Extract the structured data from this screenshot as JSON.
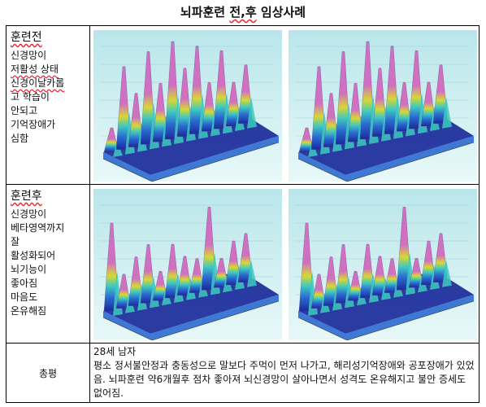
{
  "title": {
    "before": "뇌파훈련",
    "underlined": "전,후",
    "after": "임상사례"
  },
  "rows": [
    {
      "heading": "훈련전",
      "lines": [
        "신경망이",
        "저활성 상태",
        "신경이날카롭",
        "고 학습이",
        "안되고",
        "기억장애가",
        "심함"
      ]
    },
    {
      "heading": "훈련후",
      "lines": [
        "신경망이",
        "베타영역까지",
        "잘",
        "활성화되어",
        "뇌기능이",
        "좋아짐",
        "마음도",
        "온유해짐"
      ]
    }
  ],
  "summary": {
    "label": "총평",
    "line1": "28세 남자",
    "line2": "평소 정서불안정과 충동성으로 말보다 주먹이 먼저 나가고, 해리성기억장애와 공포장애가 있었음. 뇌파훈련 약6개월후 점차 좋아져 뇌신경망이 살아나면서 성격도 온유해지고 불안 증세도 없어짐."
  },
  "chart_data": [
    {
      "type": "other",
      "id": "before-left",
      "peak_heights": [
        0.25,
        0.85,
        0.55,
        0.95,
        0.6,
        1.0,
        0.7,
        0.9,
        0.5,
        0.8,
        0.45,
        0.6
      ],
      "colors": [
        "#1a2a9a",
        "#2a6ad0",
        "#3ec9c0",
        "#d8d830",
        "#d070c0"
      ]
    },
    {
      "type": "other",
      "id": "before-right",
      "peak_heights": [
        0.25,
        0.85,
        0.55,
        0.95,
        0.6,
        1.0,
        0.7,
        0.9,
        0.5,
        0.8,
        0.45,
        0.6
      ],
      "colors": [
        "#1a2a9a",
        "#2a6ad0",
        "#3ec9c0",
        "#d8d830",
        "#d070c0"
      ]
    },
    {
      "type": "other",
      "id": "after-left",
      "peak_heights": [
        0.9,
        0.35,
        0.5,
        0.6,
        0.3,
        0.55,
        0.4,
        0.35,
        0.85,
        0.3,
        0.45,
        0.5
      ],
      "colors": [
        "#1a2a9a",
        "#2a6ad0",
        "#3ec9c0",
        "#d8d830",
        "#d070c0"
      ]
    },
    {
      "type": "other",
      "id": "after-right",
      "peak_heights": [
        0.9,
        0.35,
        0.5,
        0.6,
        0.3,
        0.55,
        0.4,
        0.35,
        0.85,
        0.3,
        0.45,
        0.5
      ],
      "colors": [
        "#1a2a9a",
        "#2a6ad0",
        "#3ec9c0",
        "#d8d830",
        "#d070c0"
      ]
    }
  ]
}
